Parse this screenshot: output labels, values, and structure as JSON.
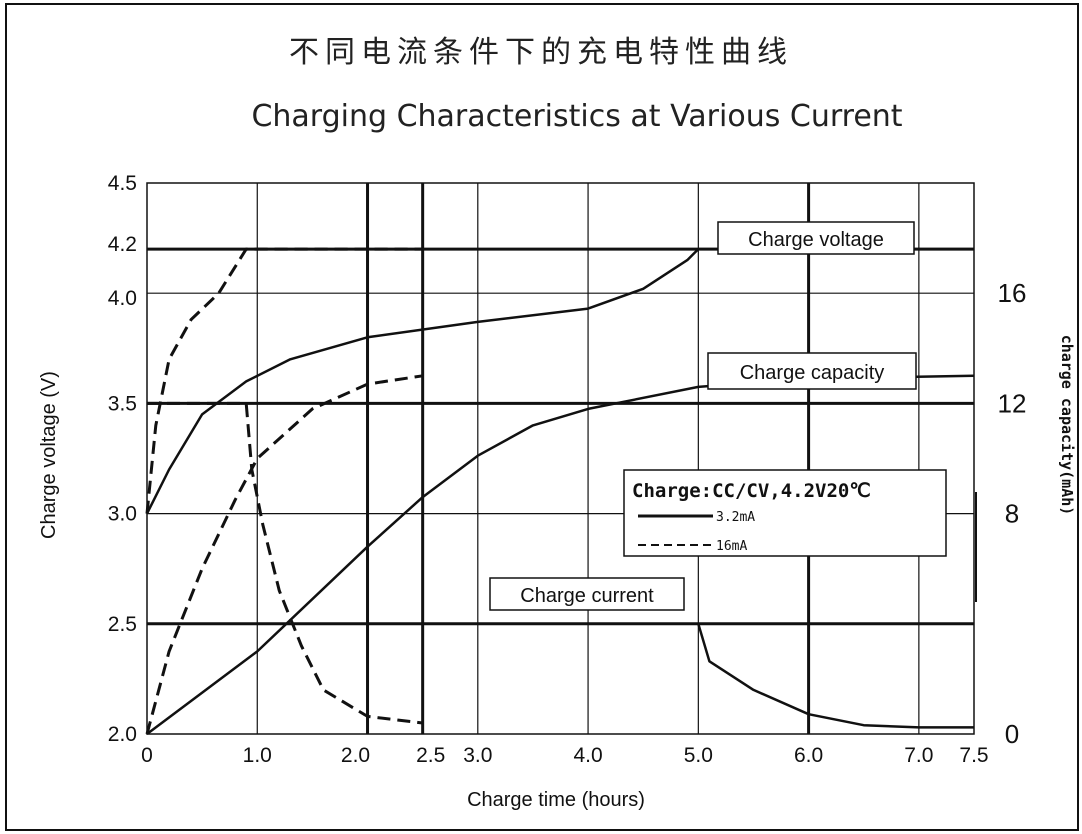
{
  "chart_data": {
    "type": "line",
    "title_cn": "不同电流条件下的充电特性曲线",
    "title": "Charging Characteristics at Various Current",
    "xlabel": "Charge time (hours)",
    "ylabel": "Charge voltage (V)",
    "ylabel_right": "charge capacity(mAh)",
    "x_ticks": [
      "0",
      "1.0",
      "2.0",
      "2.5",
      "3.0",
      "4.0",
      "5.0",
      "6.0",
      "7.0",
      "7.5"
    ],
    "y_ticks": [
      "2.0",
      "2.5",
      "3.0",
      "3.5",
      "4.0",
      "4.2",
      "4.5"
    ],
    "y_right_ticks": [
      "0",
      "8",
      "12",
      "16"
    ],
    "xlim": [
      0,
      7.5
    ],
    "ylim": [
      2.0,
      4.5
    ],
    "y_right_lim": [
      0,
      20
    ],
    "legend": {
      "header": "Charge:CC/CV,4.2V20℃",
      "items": [
        {
          "label": "3.2mA",
          "style": "solid"
        },
        {
          "label": "16mA",
          "style": "dashed"
        }
      ]
    },
    "annotations": [
      "Charge voltage",
      "Charge capacity",
      "Charge current"
    ],
    "series": [
      {
        "name": "3.2mA",
        "quantity": "voltage",
        "style": "solid",
        "axis": "left",
        "points": [
          [
            0,
            3.0
          ],
          [
            0.2,
            3.2
          ],
          [
            0.5,
            3.45
          ],
          [
            0.9,
            3.6
          ],
          [
            1.3,
            3.7
          ],
          [
            2.0,
            3.8
          ],
          [
            3.0,
            3.87
          ],
          [
            4.0,
            3.93
          ],
          [
            4.5,
            4.02
          ],
          [
            4.9,
            4.15
          ],
          [
            5.0,
            4.2
          ],
          [
            7.5,
            4.2
          ]
        ]
      },
      {
        "name": "16mA",
        "quantity": "voltage",
        "style": "dashed",
        "axis": "left",
        "points": [
          [
            0,
            3.0
          ],
          [
            0.08,
            3.4
          ],
          [
            0.2,
            3.7
          ],
          [
            0.4,
            3.88
          ],
          [
            0.65,
            4.0
          ],
          [
            0.9,
            4.2
          ],
          [
            2.5,
            4.2
          ]
        ]
      },
      {
        "name": "3.2mA",
        "quantity": "capacity",
        "style": "solid",
        "axis": "right",
        "points": [
          [
            0,
            0
          ],
          [
            1.0,
            3.0
          ],
          [
            2.0,
            6.8
          ],
          [
            2.5,
            8.6
          ],
          [
            3.0,
            10.1
          ],
          [
            3.5,
            11.2
          ],
          [
            4.0,
            11.8
          ],
          [
            5.0,
            12.6
          ],
          [
            6.0,
            12.9
          ],
          [
            7.5,
            13.0
          ]
        ]
      },
      {
        "name": "16mA",
        "quantity": "capacity",
        "style": "dashed",
        "axis": "right",
        "points": [
          [
            0,
            0
          ],
          [
            0.2,
            3.0
          ],
          [
            0.5,
            6.0
          ],
          [
            0.8,
            8.5
          ],
          [
            1.0,
            10.0
          ],
          [
            1.5,
            11.8
          ],
          [
            2.0,
            12.7
          ],
          [
            2.5,
            13.0
          ]
        ]
      },
      {
        "name": "3.2mA",
        "quantity": "current",
        "style": "solid",
        "axis": "left",
        "points": [
          [
            0,
            2.5
          ],
          [
            5.0,
            2.5
          ],
          [
            5.1,
            2.33
          ],
          [
            5.5,
            2.2
          ],
          [
            6.0,
            2.09
          ],
          [
            6.5,
            2.04
          ],
          [
            7.0,
            2.03
          ],
          [
            7.5,
            2.03
          ]
        ]
      },
      {
        "name": "16mA",
        "quantity": "current",
        "style": "dashed",
        "axis": "left",
        "points": [
          [
            0,
            3.5
          ],
          [
            0.9,
            3.5
          ],
          [
            0.95,
            3.2
          ],
          [
            1.05,
            2.95
          ],
          [
            1.2,
            2.65
          ],
          [
            1.4,
            2.4
          ],
          [
            1.6,
            2.2
          ],
          [
            2.0,
            2.08
          ],
          [
            2.5,
            2.05
          ]
        ]
      }
    ]
  }
}
